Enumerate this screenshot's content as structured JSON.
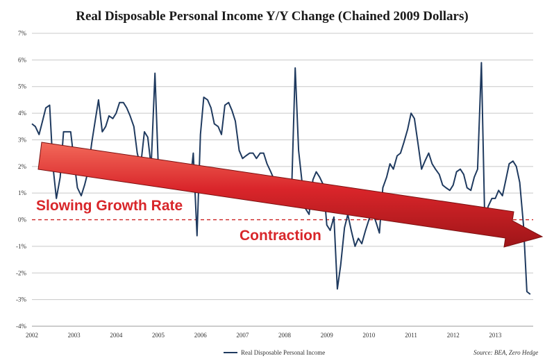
{
  "chart_data": {
    "type": "line",
    "title": "Real Disposable Personal Income Y/Y Change (Chained 2009 Dollars)",
    "xlabel": "",
    "ylabel": "",
    "ylim": [
      -4,
      7
    ],
    "xlim": [
      2002,
      2013.9
    ],
    "y_ticks": [
      "7%",
      "6%",
      "5%",
      "4%",
      "3%",
      "2%",
      "1%",
      "0%",
      "-1%",
      "-2%",
      "-3%",
      "-4%"
    ],
    "x_ticks": [
      "2002",
      "2003",
      "2004",
      "2005",
      "2006",
      "2007",
      "2008",
      "2009",
      "2010",
      "2011",
      "2012",
      "2013"
    ],
    "grid": true,
    "legend_position": "bottom-center",
    "series": [
      {
        "name": "Real Disposable Personal Income",
        "color": "#1f3a5f",
        "x": [
          2002.0,
          2002.08,
          2002.17,
          2002.25,
          2002.33,
          2002.42,
          2002.5,
          2002.58,
          2002.67,
          2002.75,
          2002.83,
          2002.92,
          2003.0,
          2003.08,
          2003.17,
          2003.25,
          2003.33,
          2003.42,
          2003.5,
          2003.58,
          2003.67,
          2003.75,
          2003.83,
          2003.92,
          2004.0,
          2004.08,
          2004.17,
          2004.25,
          2004.33,
          2004.42,
          2004.5,
          2004.58,
          2004.67,
          2004.75,
          2004.83,
          2004.92,
          2005.0,
          2005.08,
          2005.17,
          2005.25,
          2005.33,
          2005.42,
          2005.5,
          2005.58,
          2005.67,
          2005.75,
          2005.83,
          2005.92,
          2006.0,
          2006.08,
          2006.17,
          2006.25,
          2006.33,
          2006.42,
          2006.5,
          2006.58,
          2006.67,
          2006.75,
          2006.83,
          2006.92,
          2007.0,
          2007.08,
          2007.17,
          2007.25,
          2007.33,
          2007.42,
          2007.5,
          2007.58,
          2007.67,
          2007.75,
          2007.83,
          2007.92,
          2008.0,
          2008.08,
          2008.17,
          2008.25,
          2008.33,
          2008.42,
          2008.5,
          2008.58,
          2008.67,
          2008.75,
          2008.83,
          2008.92,
          2009.0,
          2009.08,
          2009.17,
          2009.25,
          2009.33,
          2009.42,
          2009.5,
          2009.58,
          2009.67,
          2009.75,
          2009.83,
          2009.92,
          2010.0,
          2010.08,
          2010.17,
          2010.25,
          2010.33,
          2010.42,
          2010.5,
          2010.58,
          2010.67,
          2010.75,
          2010.83,
          2010.92,
          2011.0,
          2011.08,
          2011.17,
          2011.25,
          2011.33,
          2011.42,
          2011.5,
          2011.58,
          2011.67,
          2011.75,
          2011.83,
          2011.92,
          2012.0,
          2012.08,
          2012.17,
          2012.25,
          2012.33,
          2012.42,
          2012.5,
          2012.58,
          2012.67,
          2012.75,
          2012.83,
          2012.92,
          2013.0,
          2013.08,
          2013.17,
          2013.25,
          2013.33,
          2013.42,
          2013.5,
          2013.58,
          2013.67,
          2013.75,
          2013.83
        ],
        "values": [
          3.6,
          3.5,
          3.2,
          3.7,
          4.2,
          4.3,
          2.0,
          0.8,
          1.6,
          3.3,
          3.3,
          3.3,
          2.2,
          1.2,
          0.9,
          1.3,
          1.8,
          2.9,
          3.7,
          4.5,
          3.3,
          3.5,
          3.9,
          3.8,
          4.0,
          4.4,
          4.4,
          4.2,
          3.9,
          3.5,
          2.5,
          2.0,
          3.3,
          3.1,
          2.0,
          5.5,
          2.0,
          1.9,
          1.8,
          1.5,
          1.5,
          1.6,
          1.5,
          1.4,
          1.2,
          1.3,
          2.5,
          -0.6,
          3.2,
          4.6,
          4.5,
          4.2,
          3.6,
          3.5,
          3.2,
          4.3,
          4.4,
          4.1,
          3.7,
          2.6,
          2.3,
          2.4,
          2.5,
          2.5,
          2.3,
          2.5,
          2.5,
          2.1,
          1.8,
          1.5,
          1.3,
          1.2,
          1.4,
          1.2,
          1.3,
          5.7,
          2.6,
          1.3,
          0.4,
          0.2,
          1.5,
          1.8,
          1.6,
          1.3,
          -0.2,
          -0.4,
          0.1,
          -2.6,
          -1.7,
          -0.3,
          0.2,
          -0.4,
          -1.0,
          -0.7,
          -0.9,
          -0.4,
          0.0,
          0.3,
          -0.1,
          -0.5,
          1.2,
          1.6,
          2.1,
          1.9,
          2.4,
          2.5,
          2.9,
          3.4,
          4.0,
          3.8,
          2.8,
          1.9,
          2.2,
          2.5,
          2.1,
          1.9,
          1.7,
          1.3,
          1.2,
          1.1,
          1.3,
          1.8,
          1.9,
          1.7,
          1.2,
          1.1,
          1.6,
          1.9,
          5.9,
          0.0,
          0.5,
          0.8,
          0.8,
          1.1,
          0.9,
          1.5,
          2.1,
          2.2,
          2.0,
          1.4,
          -0.2,
          -2.7,
          -2.8
        ]
      }
    ],
    "annotations": {
      "slowing_label": "Slowing Growth Rate",
      "contraction_label": "Contraction",
      "source": "Source: BEA, Zero Hedge"
    }
  }
}
